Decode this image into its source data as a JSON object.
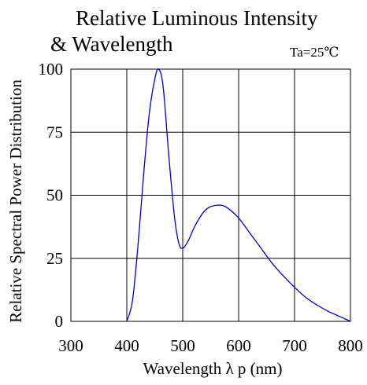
{
  "chart_data": {
    "type": "line",
    "title": "Relative Luminous Intensity",
    "title_line2": "& Wavelength",
    "annotation": "Ta=25℃",
    "xlabel": "Wavelength  λ p (nm)",
    "ylabel": "Relative Spectral Power Distribution",
    "xlim": [
      300,
      800
    ],
    "ylim": [
      0,
      100
    ],
    "x_ticks": [
      300,
      400,
      500,
      600,
      700,
      800
    ],
    "y_ticks": [
      0,
      25,
      50,
      75,
      100
    ],
    "grid": true,
    "colors": {
      "line": "#0000cc",
      "frame": "#000000"
    },
    "series": [
      {
        "values": [
          [
            400,
            0
          ],
          [
            410,
            8
          ],
          [
            420,
            30
          ],
          [
            430,
            58
          ],
          [
            440,
            82
          ],
          [
            450,
            96
          ],
          [
            457,
            100
          ],
          [
            465,
            93
          ],
          [
            475,
            66
          ],
          [
            485,
            42
          ],
          [
            493,
            31
          ],
          [
            500,
            29
          ],
          [
            510,
            32
          ],
          [
            520,
            37
          ],
          [
            530,
            41
          ],
          [
            540,
            44
          ],
          [
            550,
            45.5
          ],
          [
            560,
            46
          ],
          [
            570,
            46
          ],
          [
            580,
            45
          ],
          [
            600,
            41
          ],
          [
            620,
            35
          ],
          [
            640,
            29
          ],
          [
            660,
            23
          ],
          [
            680,
            18
          ],
          [
            700,
            13.5
          ],
          [
            720,
            9.5
          ],
          [
            740,
            6.5
          ],
          [
            760,
            4
          ],
          [
            780,
            2
          ],
          [
            800,
            0
          ]
        ]
      }
    ]
  }
}
